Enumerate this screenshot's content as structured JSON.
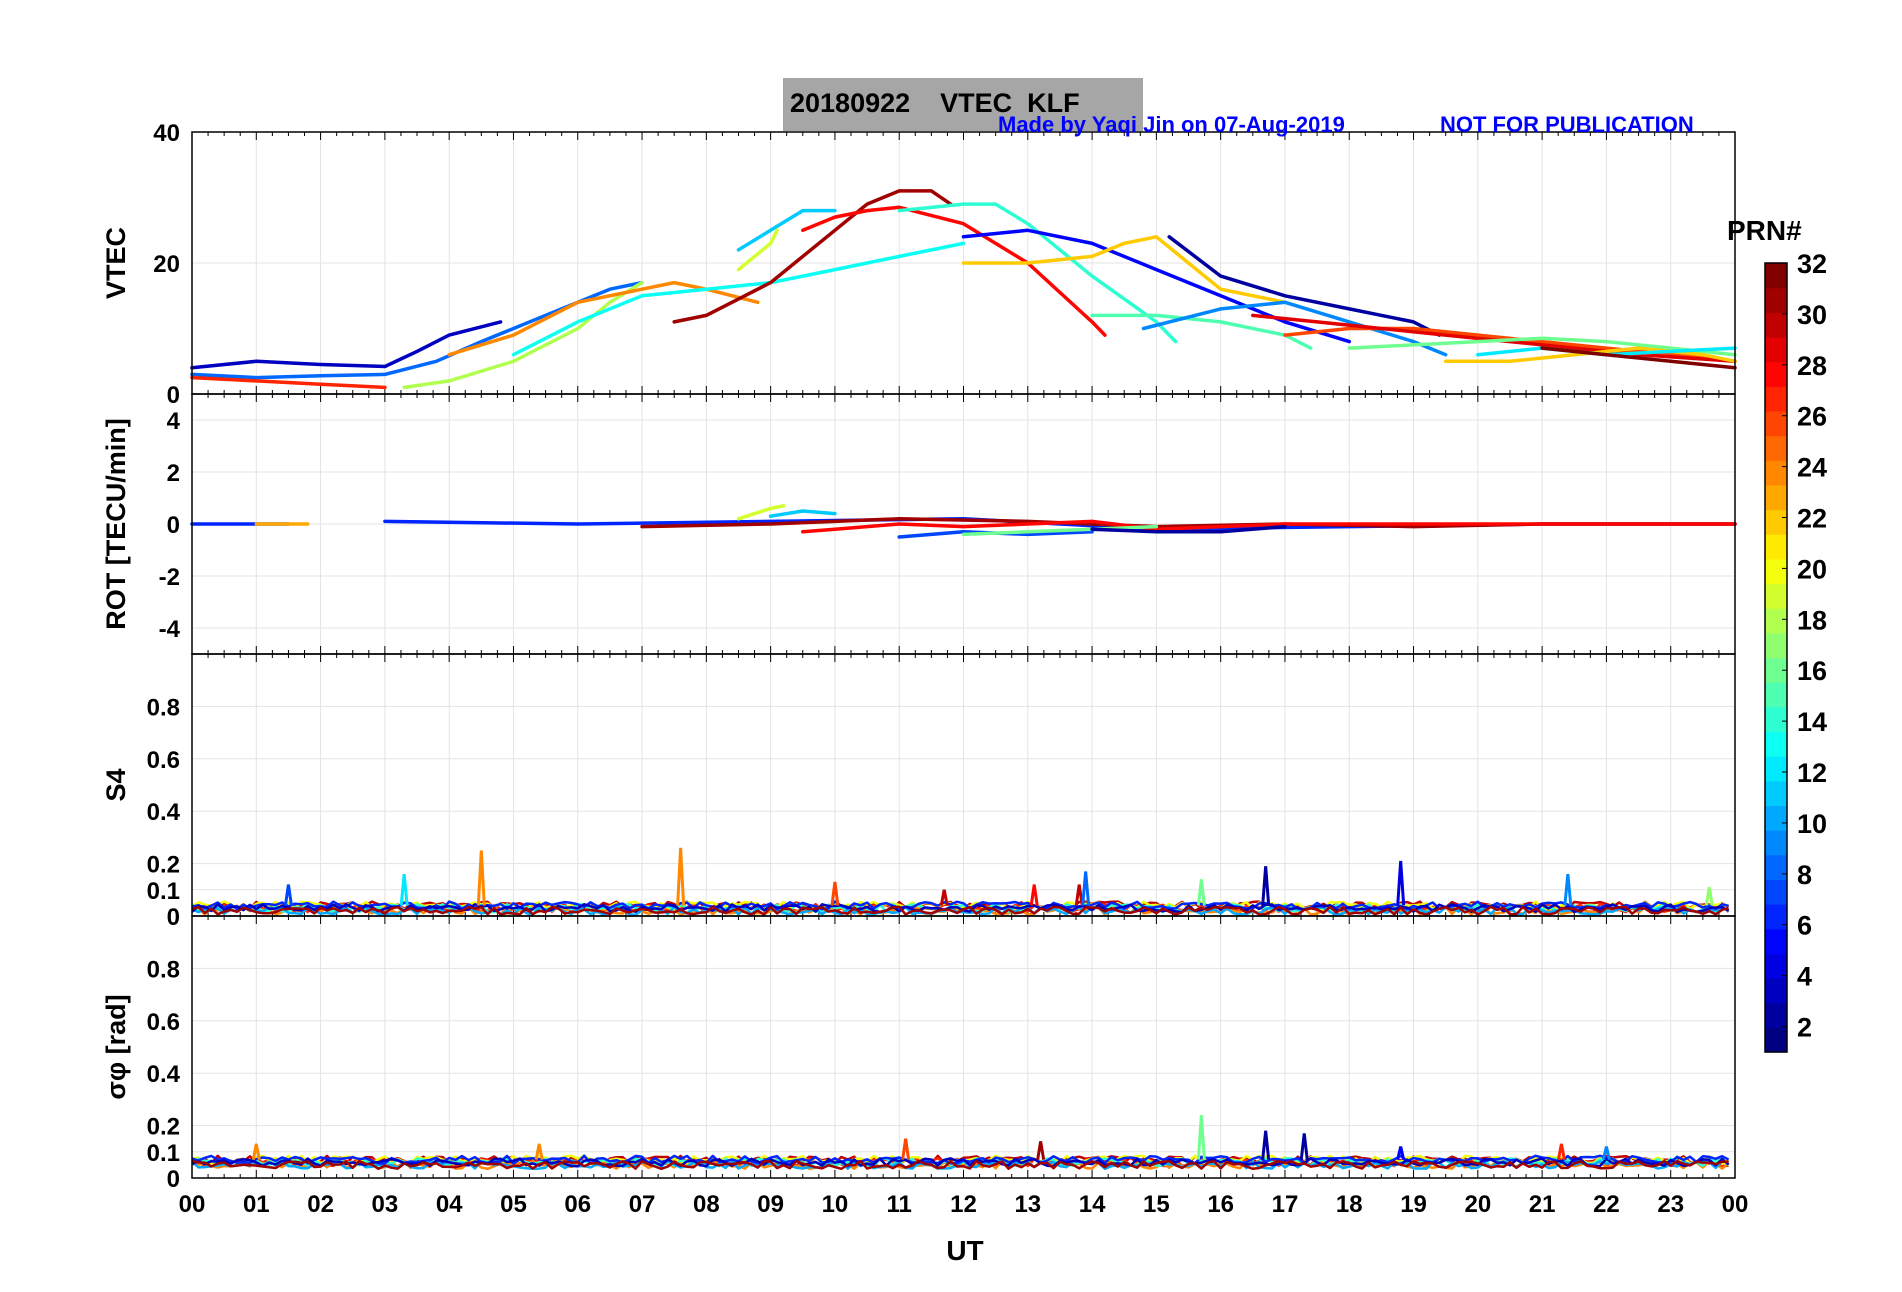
{
  "header": {
    "title": "20180922    VTEC  KLF",
    "made_by": "Made by Yaqi Jin on 07-Aug-2019",
    "notice": "NOT FOR PUBLICATION",
    "title_box_color": "#a6a6a6",
    "notice_color": "#0000ff"
  },
  "chart_data": [
    {
      "type": "line",
      "panel": "vtec",
      "ylabel": "VTEC",
      "ylim": [
        0,
        40
      ],
      "yticks": [
        "0",
        "20",
        "40"
      ],
      "series": [
        {
          "prn": 3,
          "x": [
            0,
            1,
            2,
            3,
            3.5,
            4,
            4.8
          ],
          "y": [
            4,
            5,
            4.5,
            4.2,
            6.5,
            9,
            11
          ]
        },
        {
          "prn": 8,
          "x": [
            0,
            1,
            2,
            3,
            3.8,
            4.5,
            5.5,
            6.5,
            7
          ],
          "y": [
            3,
            2.5,
            2.8,
            3,
            5,
            8,
            12,
            16,
            17
          ]
        },
        {
          "prn": 27,
          "x": [
            0,
            1,
            2,
            3
          ],
          "y": [
            2.5,
            2,
            1.5,
            1
          ]
        },
        {
          "prn": 18,
          "x": [
            3.3,
            4,
            5,
            6,
            6.5,
            7
          ],
          "y": [
            1,
            2,
            5,
            10,
            14,
            17
          ]
        },
        {
          "prn": 24,
          "x": [
            4,
            5,
            6,
            7,
            7.5,
            8,
            8.8
          ],
          "y": [
            6,
            9,
            14,
            16,
            17,
            16,
            14
          ]
        },
        {
          "prn": 13,
          "x": [
            5,
            6,
            7,
            8,
            9,
            10,
            11,
            12
          ],
          "y": [
            6,
            11,
            15,
            16,
            17,
            19,
            21,
            23
          ]
        },
        {
          "prn": 11,
          "x": [
            8.5,
            9,
            9.5,
            10
          ],
          "y": [
            22,
            25,
            28,
            28
          ]
        },
        {
          "prn": 19,
          "x": [
            8.5,
            9,
            9.1
          ],
          "y": [
            19,
            23,
            25
          ]
        },
        {
          "prn": 31,
          "x": [
            7.5,
            8,
            9,
            10,
            10.5,
            11,
            11.5,
            11.8
          ],
          "y": [
            11,
            12,
            17,
            25,
            29,
            31,
            31,
            29
          ]
        },
        {
          "prn": 28,
          "x": [
            9.5,
            10,
            10.5,
            11,
            12,
            13,
            14,
            14.2
          ],
          "y": [
            25,
            27,
            28,
            28.5,
            26,
            20,
            11,
            9
          ]
        },
        {
          "prn": 14,
          "x": [
            11,
            12,
            12.5,
            13,
            14,
            15,
            15.3
          ],
          "y": [
            28,
            29,
            29,
            26,
            18,
            11,
            8
          ]
        },
        {
          "prn": 5,
          "x": [
            12,
            13,
            14,
            15,
            16,
            17,
            18
          ],
          "y": [
            24,
            25,
            23,
            19,
            15,
            11,
            8
          ]
        },
        {
          "prn": 22,
          "x": [
            12,
            13,
            14,
            14.5,
            15,
            15.5,
            16,
            17
          ],
          "y": [
            20,
            20,
            21,
            23,
            24,
            20,
            16,
            14
          ]
        },
        {
          "prn": 15,
          "x": [
            14,
            15,
            16,
            17,
            17.4
          ],
          "y": [
            12,
            12,
            11,
            9,
            7
          ]
        },
        {
          "prn": 2,
          "x": [
            15.2,
            16,
            17,
            18,
            19,
            19.4
          ],
          "y": [
            24,
            18,
            15,
            13,
            11,
            9
          ]
        },
        {
          "prn": 9,
          "x": [
            14.8,
            16,
            17,
            18,
            19,
            19.5
          ],
          "y": [
            10,
            13,
            14,
            11,
            8,
            6
          ]
        },
        {
          "prn": 26,
          "x": [
            17,
            18,
            19,
            20,
            21,
            22,
            23,
            24
          ],
          "y": [
            9,
            10,
            10,
            9,
            8,
            7,
            6,
            5
          ]
        },
        {
          "prn": 29,
          "x": [
            16.5,
            17.5,
            18.5,
            19.5,
            20.5,
            21.5,
            22.5,
            24
          ],
          "y": [
            12,
            11,
            10,
            9,
            8,
            7,
            6,
            5
          ]
        },
        {
          "prn": 16,
          "x": [
            18,
            19,
            20,
            21,
            22,
            23,
            24
          ],
          "y": [
            7,
            7.5,
            8,
            8.5,
            8,
            7,
            6
          ]
        },
        {
          "prn": 22,
          "x": [
            19.5,
            20.5,
            21.5,
            22.5,
            23.5,
            24
          ],
          "y": [
            5,
            5,
            6,
            7,
            6,
            5
          ]
        },
        {
          "prn": 12,
          "x": [
            20,
            21,
            22,
            23,
            24
          ],
          "y": [
            6,
            7,
            6,
            6.5,
            7
          ]
        },
        {
          "prn": 32,
          "x": [
            21,
            22,
            23,
            24
          ],
          "y": [
            7,
            6,
            5,
            4
          ]
        }
      ]
    },
    {
      "type": "line",
      "panel": "rot",
      "ylabel": "ROT [TECU/min]",
      "ylim": [
        -5,
        5
      ],
      "yticks": [
        "-4",
        "-2",
        "0",
        "2",
        "4"
      ],
      "series": [
        {
          "prn": 6,
          "x": [
            0,
            1.5
          ],
          "y": [
            0,
            0
          ]
        },
        {
          "prn": 23,
          "x": [
            1,
            1.8
          ],
          "y": [
            0,
            0
          ]
        },
        {
          "prn": 6,
          "x": [
            3,
            6,
            9,
            12,
            15,
            18,
            21,
            24
          ],
          "y": [
            0.1,
            0,
            0.1,
            0.2,
            -0.2,
            -0.1,
            0,
            0
          ]
        },
        {
          "prn": 19,
          "x": [
            8.5,
            9,
            9.2
          ],
          "y": [
            0.2,
            0.6,
            0.7
          ]
        },
        {
          "prn": 11,
          "x": [
            9,
            9.5,
            10
          ],
          "y": [
            0.3,
            0.5,
            0.4
          ]
        },
        {
          "prn": 7,
          "x": [
            11,
            11.5,
            12,
            13,
            14
          ],
          "y": [
            -0.5,
            -0.4,
            -0.3,
            -0.4,
            -0.3
          ]
        },
        {
          "prn": 31,
          "x": [
            7,
            9,
            11,
            13,
            15,
            17,
            19,
            21,
            23,
            24
          ],
          "y": [
            -0.1,
            0,
            0.2,
            0.1,
            -0.1,
            0,
            -0.1,
            0,
            0,
            0
          ]
        },
        {
          "prn": 28,
          "x": [
            9.5,
            10,
            11,
            12,
            13,
            14,
            15,
            16,
            17,
            20,
            22,
            24
          ],
          "y": [
            -0.3,
            -0.2,
            0,
            -0.1,
            0,
            0.1,
            -0.2,
            -0.1,
            0,
            0,
            0,
            0
          ]
        },
        {
          "prn": 16,
          "x": [
            12,
            13,
            14,
            15
          ],
          "y": [
            -0.4,
            -0.3,
            -0.2,
            -0.1
          ]
        },
        {
          "prn": 2,
          "x": [
            14,
            15,
            16,
            17
          ],
          "y": [
            -0.2,
            -0.3,
            -0.3,
            -0.1
          ]
        }
      ]
    },
    {
      "type": "line",
      "panel": "s4",
      "ylabel": "S4",
      "ylim": [
        0,
        1
      ],
      "yticks": [
        "0",
        "0.1",
        "0.2",
        "0.4",
        "0.6",
        "0.8"
      ],
      "baseline": 0.04,
      "spikes": [
        {
          "prn": 7,
          "x": 1.5,
          "y": 0.12
        },
        {
          "prn": 12,
          "x": 3.3,
          "y": 0.16
        },
        {
          "prn": 24,
          "x": 4.5,
          "y": 0.25
        },
        {
          "prn": 24,
          "x": 7.6,
          "y": 0.26
        },
        {
          "prn": 26,
          "x": 10,
          "y": 0.13
        },
        {
          "prn": 30,
          "x": 11.7,
          "y": 0.1
        },
        {
          "prn": 28,
          "x": 13.1,
          "y": 0.12
        },
        {
          "prn": 30,
          "x": 13.8,
          "y": 0.12
        },
        {
          "prn": 8,
          "x": 13.9,
          "y": 0.17
        },
        {
          "prn": 16,
          "x": 15.7,
          "y": 0.14
        },
        {
          "prn": 2,
          "x": 16.7,
          "y": 0.19
        },
        {
          "prn": 4,
          "x": 18.8,
          "y": 0.21
        },
        {
          "prn": 9,
          "x": 21.4,
          "y": 0.16
        },
        {
          "prn": 17,
          "x": 23.6,
          "y": 0.11
        }
      ]
    },
    {
      "type": "line",
      "panel": "sigma_phi",
      "ylabel": "σφ [rad]",
      "ylim": [
        0,
        1
      ],
      "yticks": [
        "0",
        "0.1",
        "0.2",
        "0.4",
        "0.6",
        "0.8"
      ],
      "baseline": 0.07,
      "spikes": [
        {
          "prn": 24,
          "x": 1,
          "y": 0.13
        },
        {
          "prn": 24,
          "x": 5.4,
          "y": 0.13
        },
        {
          "prn": 26,
          "x": 11.1,
          "y": 0.15
        },
        {
          "prn": 31,
          "x": 13.2,
          "y": 0.14
        },
        {
          "prn": 16,
          "x": 15.7,
          "y": 0.24
        },
        {
          "prn": 2,
          "x": 16.7,
          "y": 0.18
        },
        {
          "prn": 2,
          "x": 17.3,
          "y": 0.17
        },
        {
          "prn": 5,
          "x": 18.8,
          "y": 0.12
        },
        {
          "prn": 27,
          "x": 21.3,
          "y": 0.13
        },
        {
          "prn": 9,
          "x": 22,
          "y": 0.12
        }
      ]
    }
  ],
  "x_axis": {
    "label": "UT",
    "range": [
      0,
      24
    ],
    "ticks": [
      "00",
      "01",
      "02",
      "03",
      "04",
      "05",
      "06",
      "07",
      "08",
      "09",
      "10",
      "11",
      "12",
      "13",
      "14",
      "15",
      "16",
      "17",
      "18",
      "19",
      "20",
      "21",
      "22",
      "23",
      "00"
    ]
  },
  "colorbar": {
    "title": "PRN#",
    "range": [
      1,
      32
    ],
    "ticks": [
      "2",
      "4",
      "6",
      "8",
      "10",
      "12",
      "14",
      "16",
      "18",
      "20",
      "22",
      "24",
      "26",
      "28",
      "30",
      "32"
    ]
  }
}
